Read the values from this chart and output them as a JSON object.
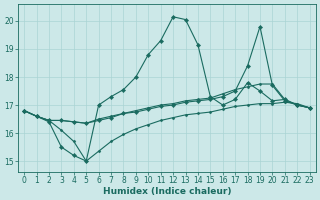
{
  "xlabel": "Humidex (Indice chaleur)",
  "bg_color": "#cce8e8",
  "line_color": "#1a6b60",
  "grid_color": "#aad4d4",
  "xlim": [
    -0.5,
    23.5
  ],
  "ylim": [
    14.6,
    20.6
  ],
  "yticks": [
    15,
    16,
    17,
    18,
    19,
    20
  ],
  "xticks": [
    0,
    1,
    2,
    3,
    4,
    5,
    6,
    7,
    8,
    9,
    10,
    11,
    12,
    13,
    14,
    15,
    16,
    17,
    18,
    19,
    20,
    21,
    22,
    23
  ],
  "line1_x": [
    0,
    1,
    2,
    3,
    4,
    5,
    6,
    7,
    8,
    9,
    10,
    11,
    12,
    13,
    14,
    15,
    16,
    17,
    18,
    19,
    20,
    21,
    22,
    23
  ],
  "line1_y": [
    16.8,
    16.6,
    16.4,
    15.5,
    15.2,
    15.0,
    17.0,
    17.3,
    17.55,
    18.0,
    18.8,
    19.3,
    20.15,
    20.05,
    19.15,
    17.3,
    17.0,
    17.2,
    17.8,
    17.5,
    17.15,
    17.2,
    17.0,
    16.9
  ],
  "line2_x": [
    0,
    1,
    2,
    3,
    4,
    5,
    6,
    7,
    8,
    9,
    10,
    11,
    12,
    13,
    14,
    15,
    16,
    17,
    18,
    19,
    20,
    21,
    22,
    23
  ],
  "line2_y": [
    16.8,
    16.6,
    16.45,
    16.45,
    16.4,
    16.35,
    16.45,
    16.55,
    16.7,
    16.75,
    16.85,
    16.95,
    17.0,
    17.1,
    17.15,
    17.2,
    17.3,
    17.5,
    18.4,
    19.8,
    17.7,
    17.15,
    17.0,
    16.9
  ],
  "line3_x": [
    0,
    1,
    2,
    3,
    4,
    5,
    6,
    7,
    8,
    9,
    10,
    11,
    12,
    13,
    14,
    15,
    16,
    17,
    18,
    19,
    20,
    21,
    22,
    23
  ],
  "line3_y": [
    16.8,
    16.6,
    16.45,
    16.45,
    16.4,
    16.35,
    16.5,
    16.6,
    16.7,
    16.8,
    16.9,
    17.0,
    17.05,
    17.15,
    17.2,
    17.25,
    17.4,
    17.55,
    17.65,
    17.75,
    17.75,
    17.2,
    17.0,
    16.9
  ],
  "line4_x": [
    0,
    1,
    2,
    3,
    4,
    5,
    6,
    7,
    8,
    9,
    10,
    11,
    12,
    13,
    14,
    15,
    16,
    17,
    18,
    19,
    20,
    21,
    22,
    23
  ],
  "line4_y": [
    16.8,
    16.6,
    16.45,
    16.1,
    15.7,
    15.0,
    15.35,
    15.7,
    15.95,
    16.15,
    16.3,
    16.45,
    16.55,
    16.65,
    16.7,
    16.75,
    16.85,
    16.95,
    17.0,
    17.05,
    17.05,
    17.1,
    17.05,
    16.9
  ]
}
